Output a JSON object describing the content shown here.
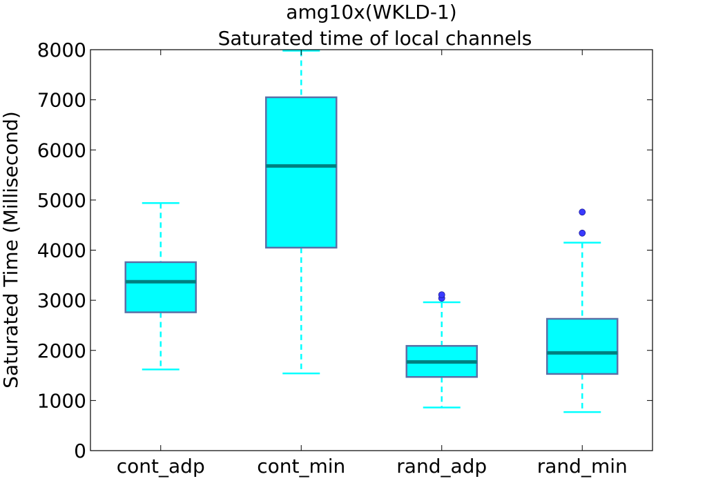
{
  "chart_data": {
    "type": "box",
    "title_line1": "amg10x(WKLD-1)",
    "title_line2": "Saturated time of local channels",
    "xlabel": "",
    "ylabel": "Saturated Time (Millisecond)",
    "ylim": [
      0,
      8000
    ],
    "yticks": [
      "0",
      "1000",
      "2000",
      "3000",
      "4000",
      "5000",
      "6000",
      "7000",
      "8000"
    ],
    "ytick_values": [
      0,
      1000,
      2000,
      3000,
      4000,
      5000,
      6000,
      7000,
      8000
    ],
    "grid": false,
    "legend": "none",
    "colors": {
      "box_fill": "#00ffff",
      "box_edge": "#5b6fa6",
      "median": "#008080",
      "whisker": "#00ffff",
      "outlier": "#3a3aff"
    },
    "categories": [
      "cont_adp",
      "cont_min",
      "rand_adp",
      "rand_min"
    ],
    "boxes": [
      {
        "label": "cont_adp",
        "whisker_low": 1620,
        "q1": 2760,
        "median": 3370,
        "q3": 3760,
        "whisker_high": 4940,
        "outliers": []
      },
      {
        "label": "cont_min",
        "whisker_low": 1540,
        "q1": 4050,
        "median": 5680,
        "q3": 7050,
        "whisker_high": 7980,
        "outliers": []
      },
      {
        "label": "rand_adp",
        "whisker_low": 860,
        "q1": 1470,
        "median": 1770,
        "q3": 2090,
        "whisker_high": 2960,
        "outliers": [
          3040,
          3110
        ]
      },
      {
        "label": "rand_min",
        "whisker_low": 770,
        "q1": 1530,
        "median": 1950,
        "q3": 2630,
        "whisker_high": 4150,
        "outliers": [
          4340,
          4760
        ]
      }
    ]
  }
}
